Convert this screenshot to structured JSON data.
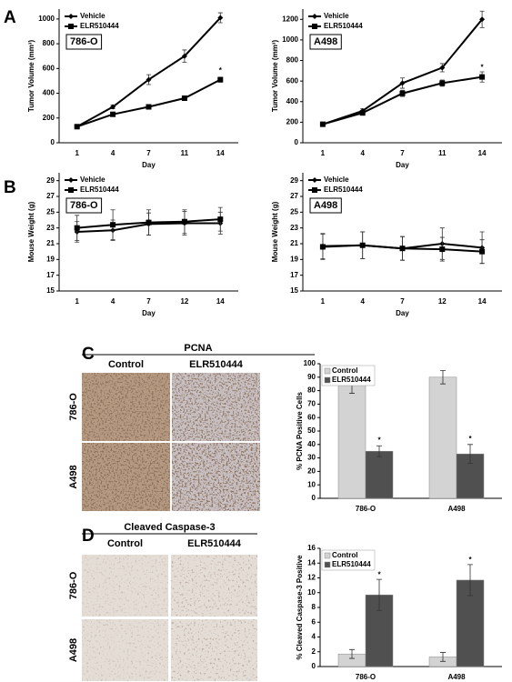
{
  "panel_labels": [
    "A",
    "B",
    "C",
    "D"
  ],
  "ihc": [
    {
      "title": "PCNA",
      "columns": [
        "Control",
        "ELR510444"
      ],
      "rows": [
        "786-O",
        "A498"
      ]
    },
    {
      "title": "Cleaved Caspase-3",
      "columns": [
        "Control",
        "ELR510444"
      ],
      "rows": [
        "786-O",
        "A498"
      ]
    }
  ],
  "chart_data": [
    {
      "type": "line",
      "label": "786-O",
      "x_label": "Day",
      "y_label": "Tumor Volume (mm³)",
      "categories": [
        "1",
        "4",
        "7",
        "11",
        "14"
      ],
      "ylim": [
        0,
        1080
      ],
      "yticks": [
        0,
        200,
        400,
        600,
        800,
        1000
      ],
      "legend": "upper left",
      "series": [
        {
          "name": "Vehicle",
          "color": "#000000",
          "marker": "diamond",
          "values": [
            130,
            290,
            510,
            700,
            1010
          ],
          "errors": [
            10,
            15,
            40,
            50,
            40
          ]
        },
        {
          "name": "ELR510444",
          "color": "#000000",
          "marker": "square",
          "values": [
            130,
            230,
            290,
            360,
            510
          ],
          "errors": [
            10,
            10,
            10,
            15,
            20
          ]
        }
      ],
      "annotations": [
        {
          "text": "*",
          "x": "14",
          "y": 580
        }
      ]
    },
    {
      "type": "line",
      "label": "A498",
      "x_label": "Day",
      "y_label": "Tumor Volume (mm³)",
      "categories": [
        "1",
        "4",
        "7",
        "11",
        "14"
      ],
      "ylim": [
        0,
        1300
      ],
      "yticks": [
        0,
        200,
        400,
        600,
        800,
        1000,
        1200
      ],
      "legend": "upper left",
      "series": [
        {
          "name": "Vehicle",
          "color": "#000000",
          "marker": "diamond",
          "values": [
            180,
            310,
            580,
            730,
            1200
          ],
          "errors": [
            15,
            20,
            50,
            40,
            80
          ]
        },
        {
          "name": "ELR510444",
          "color": "#000000",
          "marker": "square",
          "values": [
            180,
            290,
            480,
            580,
            640
          ],
          "errors": [
            15,
            15,
            30,
            30,
            50
          ]
        }
      ],
      "annotations": [
        {
          "text": "*",
          "x": "14",
          "y": 730
        }
      ]
    },
    {
      "type": "line",
      "label": "786-O",
      "x_label": "Day",
      "y_label": "Mouse Weight (g)",
      "categories": [
        "1",
        "4",
        "7",
        "12",
        "14"
      ],
      "ylim": [
        15,
        30
      ],
      "yticks": [
        15,
        17,
        19,
        21,
        23,
        25,
        27,
        29
      ],
      "legend": "upper left",
      "series": [
        {
          "name": "Vehicle",
          "color": "#000000",
          "marker": "diamond",
          "values": [
            22.5,
            22.7,
            23.5,
            23.6,
            23.6
          ],
          "errors": [
            1.3,
            1.3,
            1.4,
            1.5,
            1.4
          ]
        },
        {
          "name": "ELR510444",
          "color": "#000000",
          "marker": "square",
          "values": [
            23.0,
            23.4,
            23.7,
            23.8,
            24.1
          ],
          "errors": [
            1.6,
            1.9,
            1.6,
            1.5,
            1.5
          ]
        }
      ]
    },
    {
      "type": "line",
      "label": "A498",
      "x_label": "Day",
      "y_label": "Mouse Weight (g)",
      "categories": [
        "1",
        "4",
        "7",
        "12",
        "14"
      ],
      "ylim": [
        15,
        30
      ],
      "yticks": [
        15,
        17,
        19,
        21,
        23,
        25,
        27,
        29
      ],
      "legend": "upper left",
      "series": [
        {
          "name": "Vehicle",
          "color": "#000000",
          "marker": "diamond",
          "values": [
            20.7,
            20.8,
            20.4,
            21.0,
            20.5
          ],
          "errors": [
            1.6,
            1.7,
            1.5,
            2.0,
            2.0
          ]
        },
        {
          "name": "ELR510444",
          "color": "#000000",
          "marker": "square",
          "values": [
            20.6,
            20.8,
            20.4,
            20.3,
            20.0
          ],
          "errors": [
            1.6,
            1.7,
            1.5,
            1.5,
            1.5
          ]
        }
      ]
    },
    {
      "type": "bar",
      "y_label": "% PCNA Positive Cells",
      "categories": [
        "786-O",
        "A498"
      ],
      "ylim": [
        0,
        100
      ],
      "yticks": [
        0,
        10,
        20,
        30,
        40,
        50,
        60,
        70,
        80,
        90,
        100
      ],
      "legend": "upper left",
      "series": [
        {
          "name": "Control",
          "color": "#d3d3d3",
          "values": [
            84,
            90
          ],
          "errors": [
            6,
            5
          ]
        },
        {
          "name": "ELR510444",
          "color": "#505050",
          "values": [
            35,
            33
          ],
          "errors": [
            4,
            7
          ]
        }
      ],
      "annotations": [
        {
          "text": "*",
          "x": "786-O",
          "y": 43
        },
        {
          "text": "*",
          "x": "A498",
          "y": 44
        }
      ]
    },
    {
      "type": "bar",
      "y_label": "% Cleaved Caspase-3 Positive",
      "categories": [
        "786-O",
        "A498"
      ],
      "ylim": [
        0,
        16
      ],
      "yticks": [
        0,
        2,
        4,
        6,
        8,
        10,
        12,
        14,
        16
      ],
      "legend": "upper left",
      "series": [
        {
          "name": "Control",
          "color": "#d3d3d3",
          "values": [
            1.7,
            1.3
          ],
          "errors": [
            0.6,
            0.6
          ]
        },
        {
          "name": "ELR510444",
          "color": "#505050",
          "values": [
            9.7,
            11.7
          ],
          "errors": [
            2.1,
            2.1
          ]
        }
      ],
      "annotations": [
        {
          "text": "*",
          "x": "786-O",
          "y": 12.4
        },
        {
          "text": "*",
          "x": "A498",
          "y": 14.4
        }
      ]
    }
  ]
}
